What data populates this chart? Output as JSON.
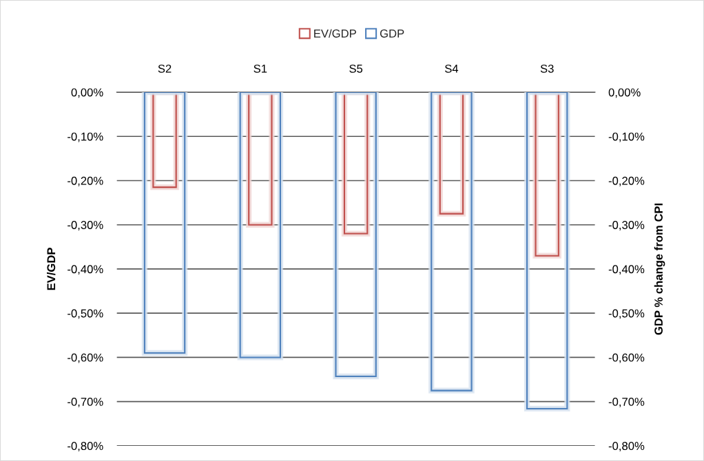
{
  "chart_data": {
    "type": "bar",
    "categories": [
      "S2",
      "S1",
      "S5",
      "S4",
      "S3"
    ],
    "ylabel": "EV/GDP",
    "y2label": "GDP % change from CPI",
    "series": [
      {
        "name": "EV/GDP",
        "color": "#c0504d",
        "values": [
          -0.215,
          -0.3,
          -0.32,
          -0.275,
          -0.37
        ]
      },
      {
        "name": "GDP",
        "color": "#4f81bd",
        "axis": "y2",
        "values": [
          -0.59,
          -0.6,
          -0.643,
          -0.675,
          -0.716
        ]
      }
    ],
    "ylim": [
      -0.8,
      0
    ],
    "yticks": [
      {
        "value": -0.8,
        "label": "-0,80%"
      },
      {
        "value": -0.7,
        "label": "-0,70%"
      },
      {
        "value": -0.6,
        "label": "-0,60%"
      },
      {
        "value": -0.5,
        "label": "-0,50%"
      },
      {
        "value": -0.4,
        "label": "-0,40%"
      },
      {
        "value": -0.3,
        "label": "-0,30%"
      },
      {
        "value": -0.2,
        "label": "-0,20%"
      },
      {
        "value": -0.1,
        "label": "-0,10%"
      },
      {
        "value": 0,
        "label": "0,00%"
      }
    ],
    "y2lim": [
      -0.8,
      0
    ],
    "y2ticks": [
      {
        "value": -0.8,
        "label": "-0,80%"
      },
      {
        "value": -0.7,
        "label": "-0,70%"
      },
      {
        "value": -0.6,
        "label": "-0,60%"
      },
      {
        "value": -0.5,
        "label": "-0,50%"
      },
      {
        "value": -0.4,
        "label": "-0,40%"
      },
      {
        "value": -0.3,
        "label": "-0,30%"
      },
      {
        "value": -0.2,
        "label": "-0,20%"
      },
      {
        "value": -0.1,
        "label": "-0,10%"
      },
      {
        "value": 0,
        "label": "0,00%"
      }
    ],
    "grid": "y",
    "legend": "top"
  }
}
